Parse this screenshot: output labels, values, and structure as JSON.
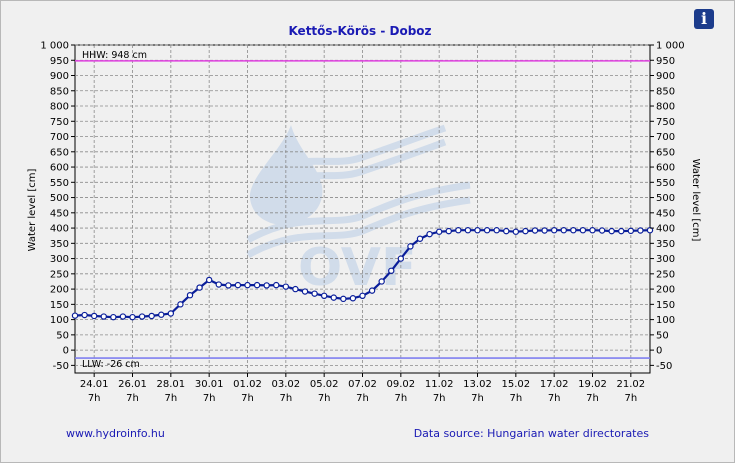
{
  "info_button": {
    "symbol": "i",
    "icon": "info-icon"
  },
  "footer": {
    "website": "www.hydroinfo.hu",
    "source": "Data source: Hungarian water directorates"
  },
  "colors": {
    "title": "#1a1ab4",
    "series": "#0a1e9a",
    "hhw_line": "#e040e0",
    "llw_line": "#8080f0",
    "background": "#f0f0f0",
    "watermark": "#b8cce6"
  },
  "watermark": {
    "text": "OVF",
    "icon": "water-drop-waves-logo"
  },
  "chart_data": {
    "type": "line",
    "title": "Kettős-Körös - Doboz",
    "ylabel_left": "Water level [cm]",
    "ylabel_right": "Water level [cm]",
    "ylim": [
      -75,
      1000
    ],
    "yticks": [
      -50,
      0,
      50,
      100,
      150,
      200,
      250,
      300,
      350,
      400,
      450,
      500,
      550,
      600,
      650,
      700,
      750,
      800,
      850,
      900,
      950,
      "1 000"
    ],
    "xlim": [
      0,
      30
    ],
    "xticks": [
      {
        "x": 1,
        "date": "24.01",
        "time": "7h"
      },
      {
        "x": 3,
        "date": "26.01",
        "time": "7h"
      },
      {
        "x": 5,
        "date": "28.01",
        "time": "7h"
      },
      {
        "x": 7,
        "date": "30.01",
        "time": "7h"
      },
      {
        "x": 9,
        "date": "01.02",
        "time": "7h"
      },
      {
        "x": 11,
        "date": "03.02",
        "time": "7h"
      },
      {
        "x": 13,
        "date": "05.02",
        "time": "7h"
      },
      {
        "x": 15,
        "date": "07.02",
        "time": "7h"
      },
      {
        "x": 17,
        "date": "09.02",
        "time": "7h"
      },
      {
        "x": 19,
        "date": "11.02",
        "time": "7h"
      },
      {
        "x": 21,
        "date": "13.02",
        "time": "7h"
      },
      {
        "x": 23,
        "date": "15.02",
        "time": "7h"
      },
      {
        "x": 25,
        "date": "17.02",
        "time": "7h"
      },
      {
        "x": 27,
        "date": "19.02",
        "time": "7h"
      },
      {
        "x": 29,
        "date": "21.02",
        "time": "7h"
      }
    ],
    "reference_lines": [
      {
        "name": "HHW",
        "value": 948,
        "label": "HHW: 948 cm"
      },
      {
        "name": "LLW",
        "value": -26,
        "label": "LLW: -26 cm"
      }
    ],
    "grid": true,
    "legend": "none",
    "series": [
      {
        "x": [
          0,
          0.5,
          1,
          1.5,
          2,
          2.5,
          3,
          3.5,
          4,
          4.5,
          5,
          5.5,
          6,
          6.5,
          7,
          7.5,
          8,
          8.5,
          9,
          9.5,
          10,
          10.5,
          11,
          11.5,
          12,
          12.5,
          13,
          13.5,
          14,
          14.5,
          15,
          15.5,
          16,
          16.5,
          17,
          17.5,
          18,
          18.5,
          19,
          19.5,
          20,
          20.5,
          21,
          21.5,
          22,
          22.5,
          23,
          23.5,
          24,
          24.5,
          25,
          25.5,
          26,
          26.5,
          27,
          27.5,
          28,
          28.5,
          29,
          29.5,
          30
        ],
        "y": [
          113,
          115,
          112,
          110,
          108,
          110,
          108,
          110,
          112,
          116,
          120,
          150,
          180,
          205,
          230,
          215,
          212,
          213,
          213,
          213,
          212,
          213,
          208,
          200,
          192,
          185,
          178,
          172,
          168,
          170,
          178,
          195,
          225,
          260,
          300,
          340,
          365,
          380,
          388,
          390,
          393,
          393,
          393,
          393,
          393,
          390,
          388,
          390,
          392,
          392,
          393,
          393,
          393,
          393,
          393,
          392,
          390,
          390,
          391,
          392,
          393
        ]
      }
    ]
  }
}
